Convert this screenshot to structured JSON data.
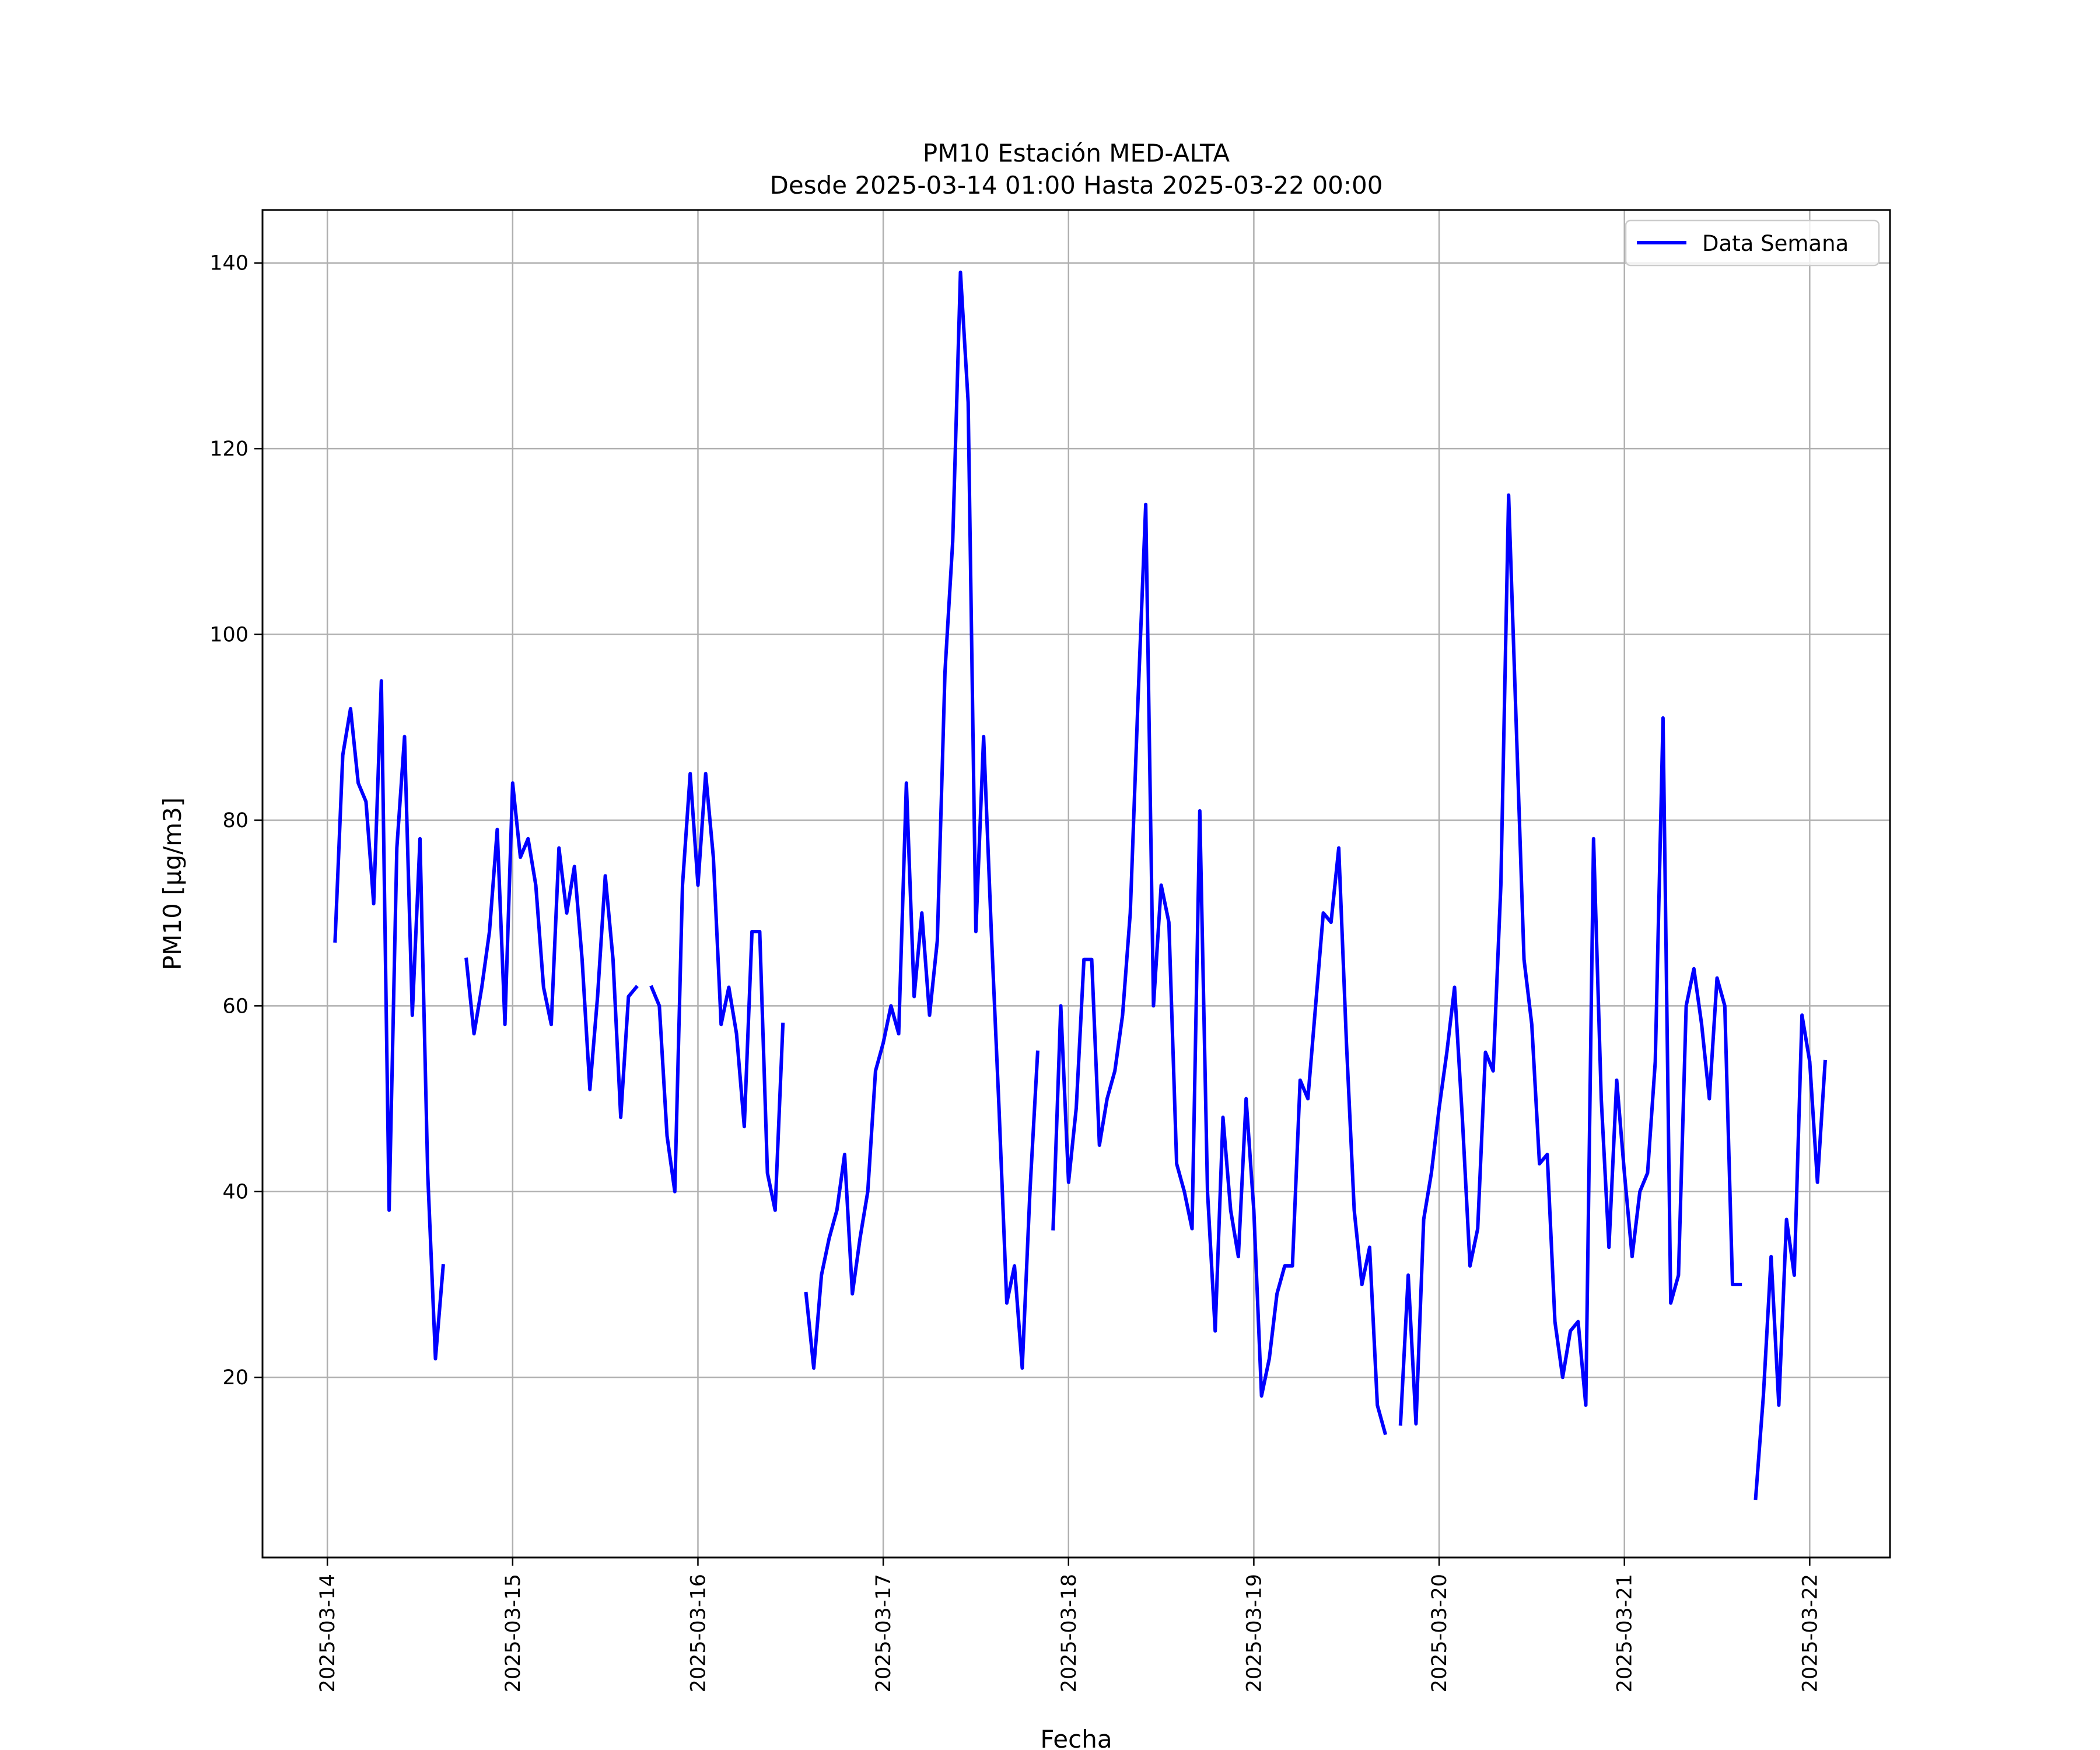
{
  "chart_data": {
    "type": "line",
    "title": "PM10 Estación MED-ALTA",
    "subtitle": "Desde 2025-03-14 01:00 Hasta 2025-03-22 00:00",
    "xlabel": "Fecha",
    "ylabel": "PM10 [μg/m3]",
    "ylim": [
      0.6,
      145.7
    ],
    "xlim": [
      "2025-03-13 15:36",
      "2025-03-22 10:24"
    ],
    "x_ticks": [
      "2025-03-14",
      "2025-03-15",
      "2025-03-16",
      "2025-03-17",
      "2025-03-18",
      "2025-03-19",
      "2025-03-20",
      "2025-03-21",
      "2025-03-22"
    ],
    "y_ticks": [
      20,
      40,
      60,
      80,
      100,
      120,
      140
    ],
    "grid": true,
    "legend_position": "top-right",
    "line_color": "#0000ff",
    "series": [
      {
        "name": "Data Semana",
        "x_start": "2025-03-14 01:00",
        "x_step": "1 hour",
        "values": [
          67,
          87,
          92,
          84,
          82,
          71,
          95,
          38,
          77,
          89,
          59,
          78,
          42,
          22,
          32,
          null,
          null,
          65,
          57,
          62,
          68,
          79,
          58,
          84,
          76,
          78,
          73,
          62,
          58,
          77,
          70,
          75,
          65,
          51,
          61,
          74,
          65,
          48,
          61,
          62,
          null,
          62,
          60,
          46,
          40,
          73,
          85,
          73,
          85,
          76,
          58,
          62,
          57,
          47,
          68,
          68,
          42,
          38,
          58,
          null,
          null,
          29,
          21,
          31,
          35,
          38,
          44,
          29,
          35,
          40,
          53,
          56,
          60,
          57,
          84,
          61,
          70,
          59,
          67,
          96,
          110,
          139,
          125,
          68,
          89,
          68,
          49,
          28,
          32,
          21,
          40,
          55,
          null,
          36,
          60,
          41,
          49,
          65,
          65,
          45,
          50,
          53,
          59,
          70,
          93,
          114,
          60,
          73,
          69,
          43,
          40,
          36,
          81,
          40,
          25,
          48,
          38,
          33,
          50,
          38,
          18,
          22,
          29,
          32,
          32,
          52,
          50,
          60,
          70,
          69,
          77,
          56,
          38,
          30,
          34,
          17,
          14,
          null,
          15,
          31,
          15,
          37,
          42,
          49,
          55,
          62,
          48,
          32,
          36,
          55,
          53,
          73,
          115,
          90,
          65,
          58,
          43,
          44,
          26,
          20,
          25,
          26,
          17,
          78,
          50,
          34,
          52,
          42,
          33,
          40,
          42,
          54,
          91,
          28,
          31,
          60,
          64,
          58,
          50,
          63,
          60,
          30,
          30,
          null,
          7,
          18,
          33,
          17,
          37,
          31,
          59,
          54,
          41,
          54
        ]
      }
    ]
  }
}
